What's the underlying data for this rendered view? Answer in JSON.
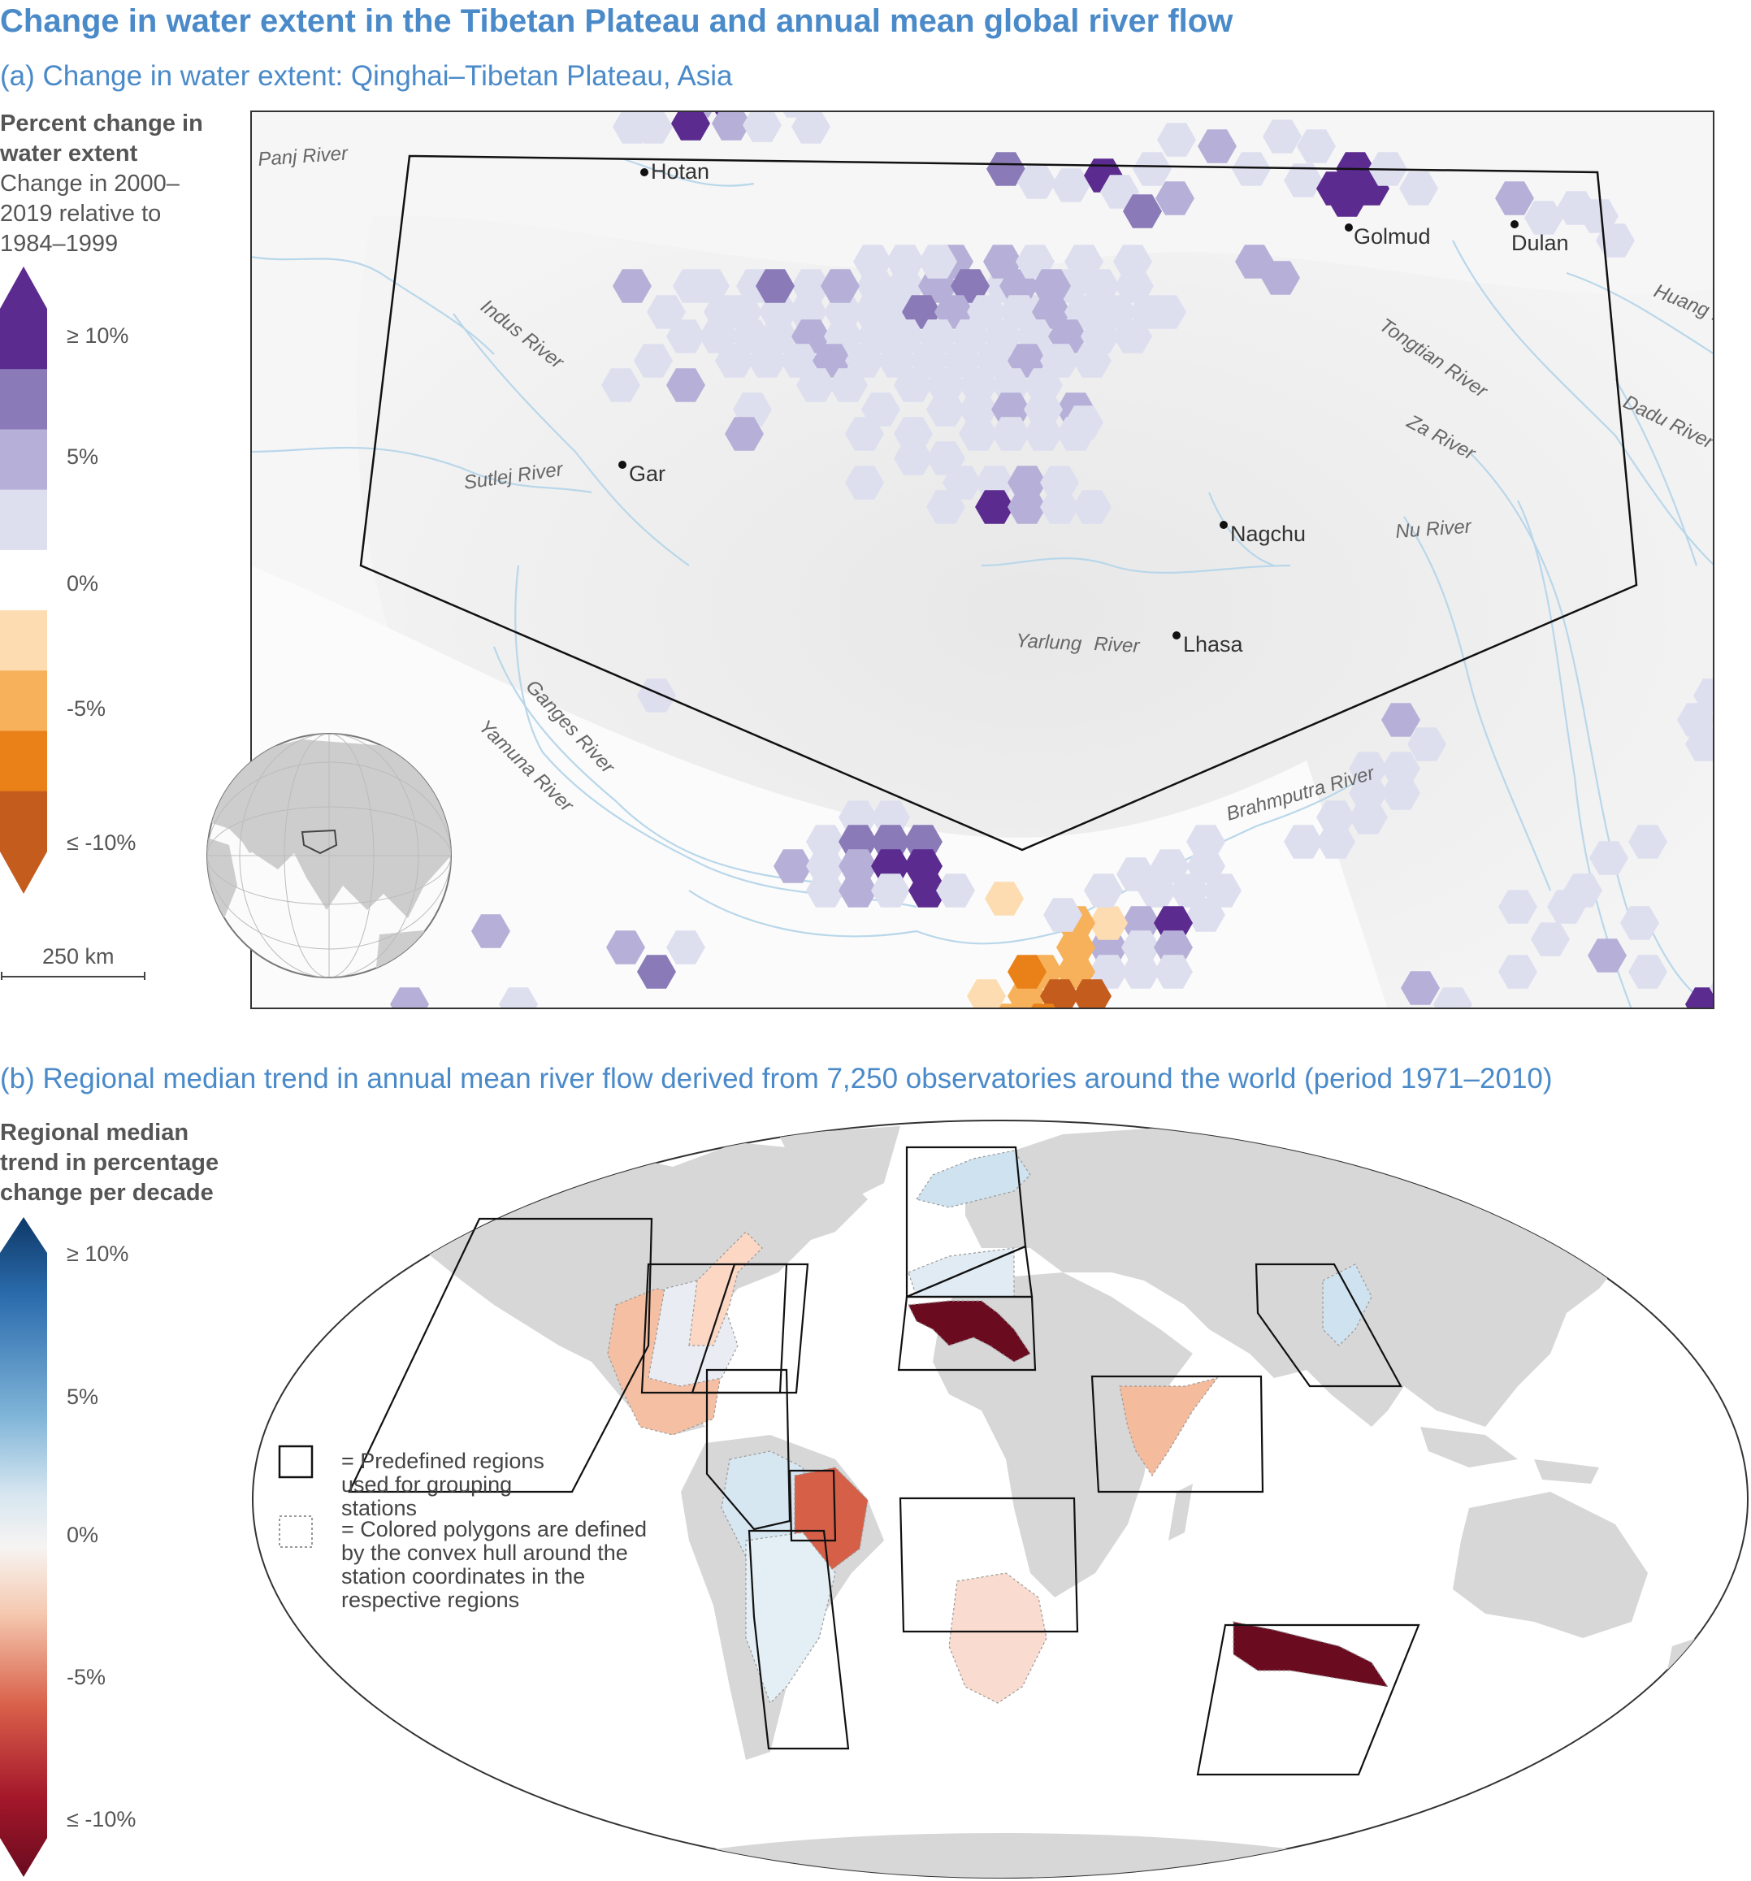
{
  "title": "Change in water extent in the Tibetan Plateau and annual mean global river flow",
  "panel_a": {
    "title": "(a) Change in water extent: Qinghai–Tibetan Plateau, Asia",
    "legend": {
      "title_bold": "Percent change in water extent",
      "title_plain": "Change in 2000–2019 relative to 1984–1999",
      "ticks": [
        "≥ 10%",
        "5%",
        "0%",
        "-5%",
        "≤ -10%"
      ],
      "colors": [
        "#5b2b8f",
        "#8a7bb8",
        "#b6b0d8",
        "#dddfef",
        "#ffffff",
        "#fddcb1",
        "#f6b15a",
        "#ea8118",
        "#c45c1e"
      ]
    },
    "scale_bar": "250 km",
    "cities": [
      "Hotan",
      "Golmud",
      "Dulan",
      "Gar",
      "Nagchu",
      "Lhasa"
    ],
    "rivers": [
      "Panj River",
      "Indus River",
      "Sutlej River",
      "Ganges River",
      "Yamuna River",
      "Tongtian River",
      "Za River",
      "Nu River",
      "Yarlung",
      "River",
      "Brahmputra River",
      "Huang River",
      "Dadu River"
    ]
  },
  "panel_b": {
    "title": "(b) Regional median trend in annual mean river flow derived from 7,250 observatories around the world (period 1971–2010)",
    "legend": {
      "title_bold": "Regional median trend in percentage change per decade",
      "ticks": [
        "≥ 10%",
        "5%",
        "0%",
        "-5%",
        "≤ -10%"
      ],
      "colors": [
        "#0e3968",
        "#2b6cad",
        "#7fb4d8",
        "#d6e6f0",
        "#f6f4f2",
        "#f5c9b0",
        "#d9604a",
        "#a4172a",
        "#6a0b1f"
      ]
    },
    "key": {
      "solid": "= Predefined regions used for grouping stations",
      "dotted": "= Colored polygons are defined by the convex hull around the station coordinates in the respective regions"
    },
    "region_colors": {
      "western_north_america": "#f5bfa3",
      "central_north_america": "#e9edf3",
      "eastern_north_america": "#fbd7c4",
      "northern_europe": "#cfe2ef",
      "central_europe": "#e0ebf3",
      "mediterranean": "#6b0b1f",
      "east_asia": "#cfe2ef",
      "south_asia": "#f5bb9d",
      "northwest_south_america": "#d7e7f2",
      "northeast_brazil": "#d65f48",
      "southern_south_america": "#e3eef5",
      "southern_africa": "#f9dccf",
      "southern_australia": "#6b0b1f"
    }
  }
}
